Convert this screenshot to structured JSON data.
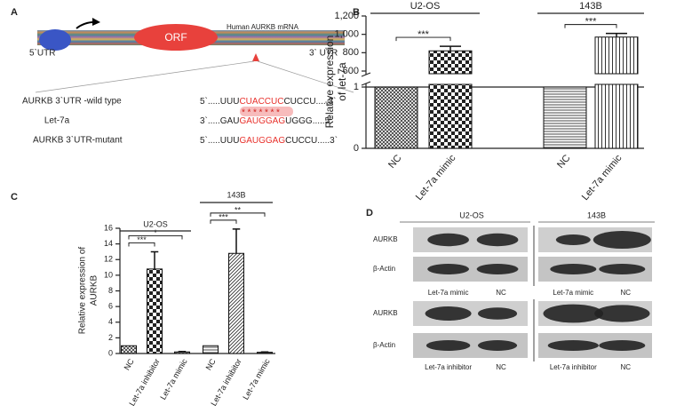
{
  "panels": {
    "a": "A",
    "b": "B",
    "c": "C",
    "d": "D"
  },
  "diagram": {
    "orf": "ORF",
    "mrna": "Human AURKB mRNA",
    "utr5": "5`UTR",
    "utr3": "3` UTR",
    "rows": [
      {
        "label": "AURKB 3`UTR -wild type",
        "seq": [
          "5`.....UUU",
          "CUACCUC",
          "CUCCU.....3`"
        ]
      },
      {
        "label": "Let-7a",
        "seq": [
          "3`.....GAU",
          "GAUGGAG",
          "UGGG.....5`"
        ]
      },
      {
        "label": "AURKB 3`UTR-mutant",
        "seq": [
          "5`.....UUU",
          "GAUGGAG",
          "CUCCU.....3`"
        ]
      }
    ],
    "pairing": "*******"
  },
  "chart_data": [
    {
      "type": "bar",
      "ylabel": [
        "Relative expression",
        "of let-7a"
      ],
      "ylim": [
        0,
        1200
      ],
      "ybreak": [
        1,
        600
      ],
      "yticks": [
        0,
        1,
        600,
        800,
        {
          "value": 1000,
          "label": "1,000"
        },
        {
          "value": 1200,
          "label": "1,200"
        }
      ],
      "groups": [
        {
          "name": "U2-OS",
          "categories": [
            "NC",
            "Let-7a mimic"
          ],
          "values": [
            1,
            820
          ],
          "errors": [
            null,
            50
          ],
          "patterns": [
            "cross",
            "checker"
          ]
        },
        {
          "name": "143B",
          "categories": [
            "NC",
            "Let-7a mimic"
          ],
          "values": [
            1,
            970
          ],
          "errors": [
            null,
            40
          ],
          "patterns": [
            "hlines",
            "vlines"
          ]
        }
      ],
      "annotations": [
        {
          "text": "***",
          "group": 0,
          "from": 0,
          "to": 1
        },
        {
          "text": "***",
          "group": 1,
          "from": 0,
          "to": 1
        }
      ]
    },
    {
      "type": "bar",
      "ylabel": [
        "Relative expression of",
        "AURKB"
      ],
      "ylim": [
        0,
        16
      ],
      "yticks": [
        0,
        2,
        4,
        6,
        8,
        10,
        12,
        14,
        16
      ],
      "groups": [
        {
          "name": "U2-OS",
          "categories": [
            "NC",
            "Let-7a inhibitor",
            "Let-7a mimic"
          ],
          "values": [
            1,
            10.8,
            0.2
          ],
          "errors": [
            null,
            2.2,
            0.05
          ],
          "patterns": [
            "cross",
            "checker",
            "cross"
          ]
        },
        {
          "name": "143B",
          "categories": [
            "NC",
            "Let-7a inhibitor",
            "Let-7a mimic"
          ],
          "values": [
            1,
            12.8,
            0.15
          ],
          "errors": [
            null,
            3.1,
            0.05
          ],
          "patterns": [
            "hlines",
            "diag",
            "hlines"
          ]
        }
      ],
      "annotations": [
        {
          "text": "***",
          "group": 0,
          "from": 0,
          "to": 1
        },
        {
          "text": "*",
          "group": 0,
          "from": 0,
          "to": 2
        },
        {
          "text": "***",
          "group": 1,
          "from": 0,
          "to": 1
        },
        {
          "text": "**",
          "group": 1,
          "from": 0,
          "to": 2
        }
      ]
    }
  ],
  "blot": {
    "groups": [
      "U2-OS",
      "143B"
    ],
    "proteins": [
      "AURKB",
      "β-Actin"
    ],
    "lanes": [
      [
        "Let-7a mimic",
        "NC"
      ],
      [
        "Let-7a mimic",
        "NC"
      ],
      [
        "Let-7a inhibitor",
        "NC"
      ],
      [
        "Let-7a inhibitor",
        "NC"
      ]
    ]
  }
}
